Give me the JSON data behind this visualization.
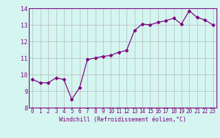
{
  "x": [
    0,
    1,
    2,
    3,
    4,
    5,
    6,
    7,
    8,
    9,
    10,
    11,
    12,
    13,
    14,
    15,
    16,
    17,
    18,
    19,
    20,
    21,
    22,
    23
  ],
  "y": [
    9.7,
    9.5,
    9.5,
    9.8,
    9.7,
    8.5,
    9.2,
    10.9,
    11.0,
    11.1,
    11.15,
    11.35,
    11.45,
    12.65,
    13.05,
    13.0,
    13.15,
    13.25,
    13.4,
    13.05,
    13.85,
    13.45,
    13.3,
    13.0
  ],
  "line_color": "#7B0080",
  "marker": "D",
  "marker_size": 2.5,
  "bg_color": "#D5F5F0",
  "grid_color": "#AAAAAA",
  "xlabel": "Windchill (Refroidissement éolien,°C)",
  "xlabel_color": "#7B0080",
  "tick_color": "#7B0080",
  "ylim": [
    8,
    14
  ],
  "xlim": [
    -0.5,
    23.5
  ],
  "yticks": [
    8,
    9,
    10,
    11,
    12,
    13,
    14
  ],
  "xticks": [
    0,
    1,
    2,
    3,
    4,
    5,
    6,
    7,
    8,
    9,
    10,
    11,
    12,
    13,
    14,
    15,
    16,
    17,
    18,
    19,
    20,
    21,
    22,
    23
  ],
  "xlabel_fontsize": 6.0,
  "tick_fontsize": 5.5,
  "ytick_fontsize": 6.0
}
